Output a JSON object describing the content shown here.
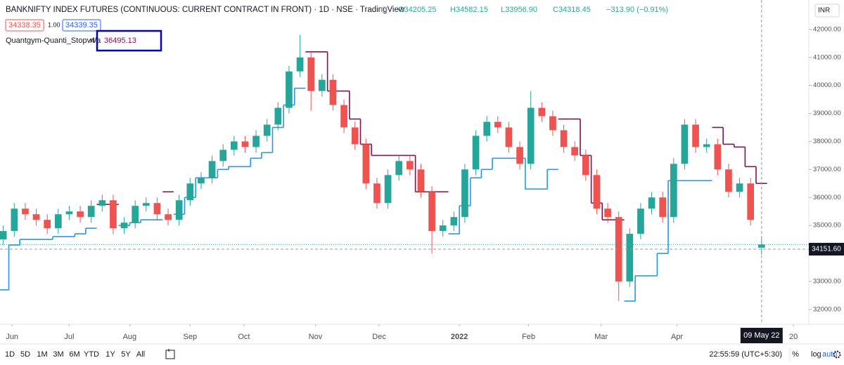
{
  "header": {
    "title": "BANKNIFTY INDEX FUTURES (CONTINUOUS: CURRENT CONTRACT IN FRONT) · 1D · NSE · TradingView",
    "ohlc": [
      "O34205.25",
      "H34582.15",
      "L33956.90",
      "C34318.45",
      "−313.90 (−0.91%)"
    ],
    "currency": "INR",
    "bid": "34338.35",
    "spread": "1.00",
    "ask": "34339.35",
    "indicator": {
      "name": "Quantgym-Quanti_Stopv4",
      "status": "n/a",
      "value": "36495.13"
    }
  },
  "toolbar": {
    "ranges": [
      "1D",
      "5D",
      "1M",
      "3M",
      "6M",
      "YTD",
      "1Y",
      "5Y",
      "All"
    ],
    "clock": "22:55:59 (UTC+5:30)",
    "options": [
      "%",
      "log",
      "auto"
    ]
  },
  "chart_data": {
    "type": "candlestick",
    "up_color": "#26a69a",
    "down_color": "#ef5350",
    "open": [
      34500,
      34800,
      35600,
      35400,
      35200,
      34900,
      35400,
      35500,
      35300,
      35700,
      35900,
      34900,
      35100,
      35700,
      35800,
      35400,
      35200,
      35900,
      36500,
      36700,
      37300,
      37700,
      38000,
      37800,
      38200,
      38600,
      39200,
      40500,
      41000,
      39800,
      40200,
      39300,
      38500,
      37900,
      36500,
      35800,
      36800,
      37300,
      37000,
      36200,
      34800,
      35000,
      35300,
      37000,
      38200,
      38700,
      38500,
      37800,
      37200,
      39200,
      38900,
      38400,
      37800,
      37500,
      36800,
      35600,
      35300,
      33000,
      34700,
      35600,
      36000,
      35300,
      37200,
      38600,
      37800,
      37900,
      37000,
      36200,
      36500,
      34205.25
    ],
    "high": [
      35000,
      35800,
      35800,
      35600,
      35400,
      35600,
      35700,
      35700,
      35900,
      36100,
      36100,
      35300,
      35900,
      36000,
      36000,
      35600,
      36100,
      36700,
      36900,
      37500,
      37900,
      38200,
      38200,
      38400,
      38800,
      39400,
      40700,
      41800,
      41200,
      40400,
      40400,
      39500,
      38700,
      38100,
      36700,
      37000,
      37500,
      37500,
      37200,
      36400,
      35200,
      35500,
      37200,
      38400,
      38900,
      38900,
      38700,
      38000,
      39800,
      39400,
      39100,
      38600,
      38000,
      37700,
      37000,
      35800,
      35500,
      34900,
      35800,
      36200,
      36200,
      37400,
      38800,
      38800,
      38100,
      38100,
      37200,
      36700,
      36700,
      34582.15
    ],
    "low": [
      34300,
      34600,
      35200,
      35000,
      34700,
      34700,
      35200,
      35100,
      35100,
      35500,
      34700,
      34700,
      34900,
      35500,
      35200,
      35000,
      35000,
      35700,
      36300,
      36500,
      37100,
      37500,
      37600,
      37600,
      38000,
      38400,
      39000,
      40300,
      39100,
      39600,
      39100,
      38300,
      37700,
      36300,
      35600,
      35600,
      36600,
      36800,
      36000,
      34000,
      34600,
      34800,
      35100,
      36800,
      38000,
      38300,
      37600,
      37000,
      37000,
      38700,
      38200,
      37600,
      37300,
      36600,
      35400,
      35100,
      32300,
      32800,
      34500,
      35400,
      35100,
      35100,
      37000,
      37600,
      37600,
      36800,
      36000,
      36000,
      35000,
      33956.9
    ],
    "close": [
      34800,
      35600,
      35400,
      35200,
      34900,
      35400,
      35500,
      35300,
      35700,
      35900,
      34900,
      35100,
      35700,
      35800,
      35400,
      35200,
      35900,
      36500,
      36700,
      37300,
      37700,
      38000,
      37800,
      38200,
      38600,
      39200,
      40500,
      41000,
      39800,
      40200,
      39300,
      38500,
      37900,
      36500,
      35800,
      36800,
      37300,
      37000,
      36200,
      34800,
      35000,
      35300,
      37000,
      38200,
      38700,
      38500,
      37800,
      37200,
      39200,
      38900,
      38400,
      37800,
      37500,
      36800,
      35600,
      35300,
      33000,
      34700,
      35600,
      36000,
      35300,
      37200,
      38600,
      37800,
      37900,
      37000,
      36200,
      36500,
      35200,
      34318.45
    ],
    "series": [
      {
        "color": "#2196f3",
        "values": [
          32700,
          34300,
          34500,
          34500,
          34500,
          34600,
          34600,
          34700,
          34900,
          null,
          null,
          35000,
          35100,
          35200,
          35200,
          null,
          35400,
          36000,
          36700,
          36700,
          37000,
          37100,
          37100,
          37400,
          37600,
          38500,
          39300,
          39900,
          null,
          null,
          null,
          null,
          null,
          null,
          null,
          null,
          null,
          null,
          null,
          null,
          null,
          34700,
          35700,
          36700,
          37000,
          37400,
          37400,
          37400,
          36300,
          36300,
          37000,
          null,
          null,
          null,
          null,
          null,
          null,
          32300,
          33200,
          33200,
          34000,
          36600,
          36600,
          36600,
          36600,
          null,
          null,
          null,
          null,
          null
        ]
      },
      {
        "color": "#880e4f",
        "values": [
          null,
          null,
          null,
          null,
          null,
          null,
          null,
          null,
          null,
          35750,
          35750,
          null,
          null,
          null,
          null,
          36200,
          null,
          null,
          null,
          null,
          null,
          null,
          null,
          null,
          null,
          null,
          null,
          null,
          41200,
          41200,
          39800,
          39800,
          38800,
          37900,
          37500,
          37500,
          37500,
          37500,
          36200,
          36200,
          36200,
          null,
          null,
          null,
          null,
          null,
          null,
          null,
          null,
          null,
          null,
          38800,
          38800,
          37500,
          35800,
          35200,
          35200,
          null,
          null,
          null,
          null,
          null,
          null,
          null,
          null,
          38500,
          37900,
          37800,
          37100,
          36500
        ]
      }
    ],
    "step": true,
    "xlim": [
      -0.3,
      73.3
    ],
    "xticks": [
      {
        "value": 0.8,
        "label": "Jun"
      },
      {
        "value": 6,
        "label": "Jul"
      },
      {
        "value": 11.5,
        "label": "Aug"
      },
      {
        "value": 17,
        "label": "Sep"
      },
      {
        "value": 21.9,
        "label": "Oct"
      },
      {
        "value": 28.4,
        "label": "Nov"
      },
      {
        "value": 34.2,
        "label": "Dec"
      },
      {
        "value": 41.5,
        "label": "2022"
      },
      {
        "value": 47.8,
        "label": "Feb"
      },
      {
        "value": 54.4,
        "label": "Mar"
      },
      {
        "value": 61.3,
        "label": "Apr"
      },
      {
        "value": 71.9,
        "label": "20"
      }
    ],
    "ylim": [
      31470,
      43050
    ],
    "yticks": [
      {
        "value": 32000,
        "label": "32000.00"
      },
      {
        "value": 33000,
        "label": "33000.00"
      },
      {
        "value": 34000,
        "label": "34000.00"
      },
      {
        "value": 35000,
        "label": "35000.00"
      },
      {
        "value": 36000,
        "label": "36000.00"
      },
      {
        "value": 37000,
        "label": "37000.00"
      },
      {
        "value": 38000,
        "label": "38000.00"
      },
      {
        "value": 39000,
        "label": "39000.00"
      },
      {
        "value": 40000,
        "label": "40000.00"
      },
      {
        "value": 41000,
        "label": "41000.00"
      },
      {
        "value": 42000,
        "label": "42000.00"
      }
    ],
    "crosshair_date": "09 May 22",
    "crosshair_price": {
      "value": 34151.6,
      "label": "34151.60"
    }
  }
}
